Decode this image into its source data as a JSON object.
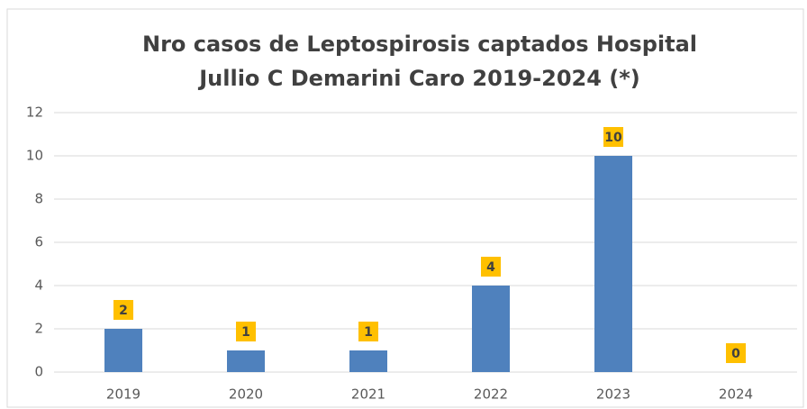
{
  "chart_data": {
    "type": "bar",
    "title": [
      "Nro casos de Leptospirosis captados Hospital",
      "Jullio C Demarini Caro 2019-2024 (*)"
    ],
    "categories": [
      "2019",
      "2020",
      "2021",
      "2022",
      "2023",
      "2024"
    ],
    "values": [
      2,
      1,
      1,
      4,
      10,
      0
    ],
    "color": "#4f81bd",
    "label_color": "#ffc000",
    "ylim": [
      0,
      12
    ],
    "yticks": [
      0,
      2,
      4,
      6,
      8,
      10,
      12
    ],
    "grid": true
  }
}
